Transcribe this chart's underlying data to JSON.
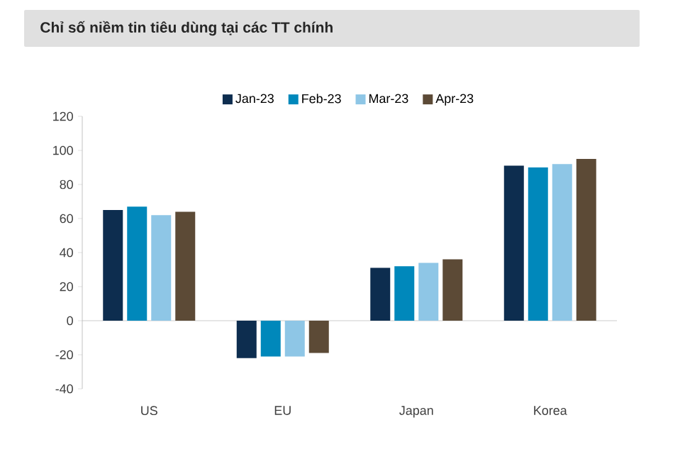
{
  "chart_data": {
    "type": "bar",
    "title": "Chỉ số niềm tin tiêu dùng tại các TT chính",
    "categories": [
      "US",
      "EU",
      "Japan",
      "Korea"
    ],
    "series": [
      {
        "name": "Jan-23",
        "color": "#0d2d4f",
        "values": [
          65,
          -22,
          31,
          91
        ]
      },
      {
        "name": "Feb-23",
        "color": "#0088bb",
        "values": [
          67,
          -21,
          32,
          90
        ]
      },
      {
        "name": "Mar-23",
        "color": "#8ec6e6",
        "values": [
          62,
          -21,
          34,
          92
        ]
      },
      {
        "name": "Apr-23",
        "color": "#5c4a36",
        "values": [
          64,
          -19,
          36,
          95
        ]
      }
    ],
    "ylim": [
      -40,
      120
    ],
    "yticks": [
      -40,
      -20,
      0,
      20,
      40,
      60,
      80,
      100,
      120
    ],
    "legend": "top"
  }
}
